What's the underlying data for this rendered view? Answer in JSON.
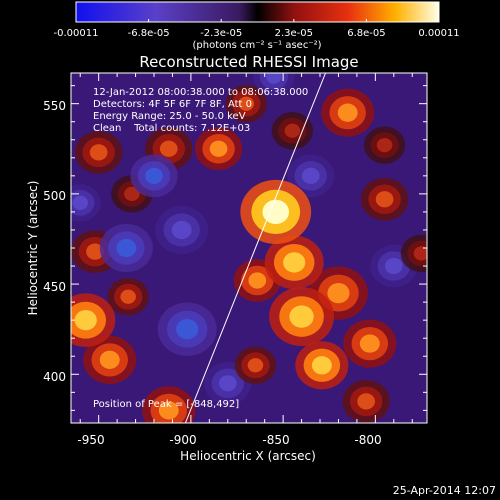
{
  "colorbar": {
    "tick_labels": [
      "-0.00011",
      "-6.8e-05",
      "-2.3e-05",
      "2.3e-05",
      "6.8e-05",
      "0.00011"
    ],
    "unit_label": "(photons cm⁻² s⁻¹ asec⁻²)",
    "range": [
      -0.00011,
      0.00011
    ]
  },
  "chart_data": {
    "type": "heatmap",
    "title": "Reconstructed RHESSI Image",
    "xlabel": "Heliocentric X (arcsec)",
    "ylabel": "Heliocentric Y (arcsec)",
    "xlim": [
      -965,
      -772
    ],
    "ylim": [
      373,
      567
    ],
    "x_ticks": [
      "-950",
      "-900",
      "-850",
      "-800"
    ],
    "y_ticks": [
      "400",
      "450",
      "500",
      "550"
    ],
    "annotations": [
      "12-Jan-2012 08:00:38.000 to 08:06:38.000",
      "Detectors: 4F 5F 6F 7F 8F, Att 0",
      "Energy Range: 25.0 - 50.0 keV",
      "Clean    Total counts: 7.12E+03"
    ],
    "peak_label": "Position of Peak = [-848,492]",
    "peak": [
      -848,
      492
    ],
    "limb_line": [
      [
        -903,
        373
      ],
      [
        -827,
        567
      ]
    ],
    "blobs": [
      {
        "x": -854,
        "y": 490,
        "s": 12,
        "a": 1.2
      },
      {
        "x": -844,
        "y": 462,
        "s": 10,
        "a": 0.95
      },
      {
        "x": -840,
        "y": 432,
        "s": 11,
        "a": 1.0
      },
      {
        "x": -820,
        "y": 445,
        "s": 10,
        "a": 0.85
      },
      {
        "x": -829,
        "y": 405,
        "s": 9,
        "a": 0.9
      },
      {
        "x": -803,
        "y": 417,
        "s": 9,
        "a": 0.75
      },
      {
        "x": -864,
        "y": 452,
        "s": 8,
        "a": 0.7
      },
      {
        "x": -805,
        "y": 385,
        "s": 8,
        "a": 0.6
      },
      {
        "x": -865,
        "y": 405,
        "s": 7,
        "a": 0.55
      },
      {
        "x": -957,
        "y": 430,
        "s": 10,
        "a": 1.05
      },
      {
        "x": -944,
        "y": 408,
        "s": 9,
        "a": 0.8
      },
      {
        "x": -912,
        "y": 380,
        "s": 9,
        "a": 0.75
      },
      {
        "x": -952,
        "y": 468,
        "s": 8,
        "a": 0.55
      },
      {
        "x": -934,
        "y": 443,
        "s": 7,
        "a": 0.55
      },
      {
        "x": -885,
        "y": 525,
        "s": 8,
        "a": 0.7
      },
      {
        "x": -870,
        "y": 550,
        "s": 7,
        "a": 0.5
      },
      {
        "x": -912,
        "y": 525,
        "s": 8,
        "a": 0.6
      },
      {
        "x": -932,
        "y": 500,
        "s": 7,
        "a": 0.45
      },
      {
        "x": -950,
        "y": 523,
        "s": 8,
        "a": 0.55
      },
      {
        "x": -815,
        "y": 545,
        "s": 9,
        "a": 0.7
      },
      {
        "x": -795,
        "y": 497,
        "s": 8,
        "a": 0.6
      },
      {
        "x": -775,
        "y": 467,
        "s": 7,
        "a": 0.45
      },
      {
        "x": -795,
        "y": 527,
        "s": 7,
        "a": 0.45
      },
      {
        "x": -845,
        "y": 535,
        "s": 7,
        "a": 0.45
      },
      {
        "x": -935,
        "y": 470,
        "s": 9,
        "a": -0.6
      },
      {
        "x": -902,
        "y": 425,
        "s": 10,
        "a": -0.6
      },
      {
        "x": -920,
        "y": 510,
        "s": 8,
        "a": -0.7
      },
      {
        "x": -905,
        "y": 480,
        "s": 9,
        "a": -0.55
      },
      {
        "x": -835,
        "y": 510,
        "s": 8,
        "a": -0.45
      },
      {
        "x": -790,
        "y": 460,
        "s": 8,
        "a": -0.4
      },
      {
        "x": -880,
        "y": 395,
        "s": 8,
        "a": -0.45
      },
      {
        "x": -960,
        "y": 495,
        "s": 7,
        "a": -0.5
      },
      {
        "x": -855,
        "y": 565,
        "s": 7,
        "a": -0.35
      }
    ]
  },
  "footer": {
    "date": "25-Apr-2014 12:07"
  }
}
